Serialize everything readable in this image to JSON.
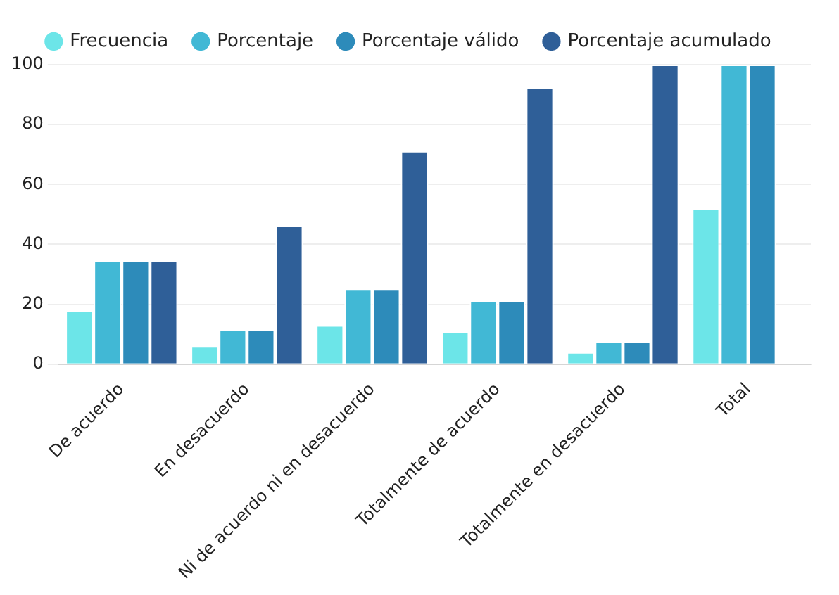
{
  "chart_data": {
    "type": "bar",
    "categories": [
      "De acuerdo",
      "En desacuerdo",
      "Ni de acuerdo ni en desacuerdo",
      "Totalmente de acuerdo",
      "Totalmente en desacuerdo",
      "Total"
    ],
    "series": [
      {
        "name": "Frecuencia",
        "color": "#6ce5e8",
        "values": [
          18,
          6,
          13,
          11,
          4,
          52
        ]
      },
      {
        "name": "Porcentaje",
        "color": "#41b8d5",
        "values": [
          34.6,
          11.5,
          25,
          21.2,
          7.7,
          100
        ]
      },
      {
        "name": "Porcentaje válido",
        "color": "#2d8bba",
        "values": [
          34.6,
          11.5,
          25,
          21.2,
          7.7,
          100
        ]
      },
      {
        "name": "Porcentaje acumulado",
        "color": "#2f5f98",
        "values": [
          34.6,
          46.2,
          71.2,
          92.3,
          100,
          null
        ]
      }
    ],
    "ylim": [
      0,
      100
    ],
    "yticks": [
      0,
      20,
      40,
      60,
      80,
      100
    ],
    "grid": "y",
    "legend": "top"
  }
}
